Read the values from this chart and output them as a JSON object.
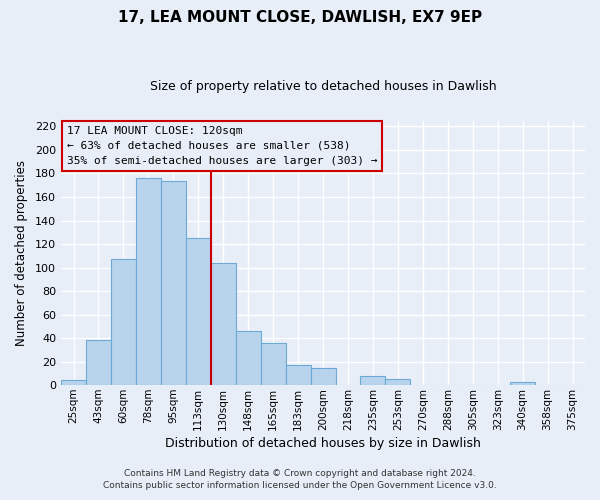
{
  "title": "17, LEA MOUNT CLOSE, DAWLISH, EX7 9EP",
  "subtitle": "Size of property relative to detached houses in Dawlish",
  "xlabel": "Distribution of detached houses by size in Dawlish",
  "ylabel": "Number of detached properties",
  "bar_labels": [
    "25sqm",
    "43sqm",
    "60sqm",
    "78sqm",
    "95sqm",
    "113sqm",
    "130sqm",
    "148sqm",
    "165sqm",
    "183sqm",
    "200sqm",
    "218sqm",
    "235sqm",
    "253sqm",
    "270sqm",
    "288sqm",
    "305sqm",
    "323sqm",
    "340sqm",
    "358sqm",
    "375sqm"
  ],
  "bar_values": [
    4,
    38,
    107,
    176,
    174,
    125,
    104,
    46,
    36,
    17,
    15,
    0,
    8,
    5,
    0,
    0,
    0,
    0,
    3,
    0,
    0
  ],
  "bar_color": "#b8d4ec",
  "bar_edge_color": "#6aaad4",
  "ylim": [
    0,
    225
  ],
  "yticks": [
    0,
    20,
    40,
    60,
    80,
    100,
    120,
    140,
    160,
    180,
    200,
    220
  ],
  "property_line_x": 5.5,
  "annotation_title": "17 LEA MOUNT CLOSE: 120sqm",
  "annotation_line1": "← 63% of detached houses are smaller (538)",
  "annotation_line2": "35% of semi-detached houses are larger (303) →",
  "footer_line1": "Contains HM Land Registry data © Crown copyright and database right 2024.",
  "footer_line2": "Contains public sector information licensed under the Open Government Licence v3.0.",
  "background_color": "#e8eef8",
  "grid_color": "#ffffff",
  "annotation_box_color": "#e8eef8",
  "annotation_box_edge": "#cc0000",
  "property_line_color": "#cc0000",
  "title_fontsize": 11,
  "subtitle_fontsize": 9,
  "xlabel_fontsize": 9,
  "ylabel_fontsize": 8.5,
  "tick_fontsize": 8,
  "xtick_fontsize": 7.5,
  "footer_fontsize": 6.5,
  "annotation_fontsize": 8
}
